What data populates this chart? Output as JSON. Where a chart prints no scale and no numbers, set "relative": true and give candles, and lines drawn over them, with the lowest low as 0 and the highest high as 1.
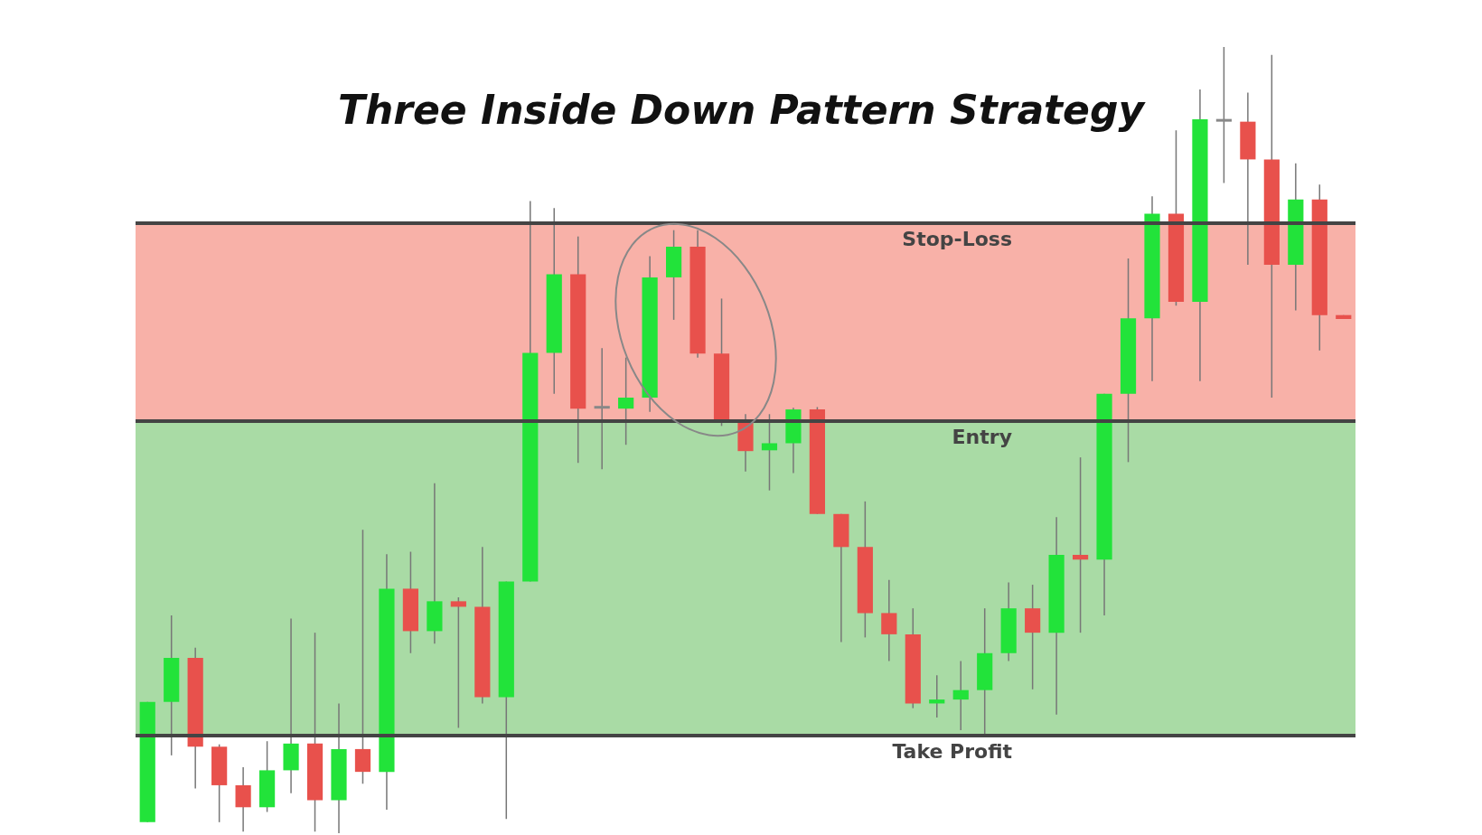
{
  "chart_data": {
    "type": "candlestick",
    "title": "Three Inside Down Pattern Strategy",
    "relative": true,
    "categories": [
      null,
      null,
      null,
      null,
      null,
      null,
      null,
      null,
      null,
      null,
      null,
      null,
      null,
      null,
      null,
      null,
      null,
      null,
      null,
      null,
      null,
      null,
      null,
      null,
      null,
      null,
      null,
      null,
      null,
      null,
      null,
      null,
      null,
      null,
      null,
      null,
      null,
      null,
      null,
      null,
      null,
      null,
      null,
      null,
      null,
      null,
      null,
      null,
      null,
      null,
      null
    ],
    "ohlc": [
      [
        0.014,
        0.167,
        0.014,
        0.167
      ],
      [
        0.167,
        0.277,
        0.099,
        0.223
      ],
      [
        0.223,
        0.236,
        0.057,
        0.11
      ],
      [
        0.11,
        0.113,
        0.014,
        0.061
      ],
      [
        0.061,
        0.084,
        0.002,
        0.033
      ],
      [
        0.033,
        0.117,
        0.027,
        0.08
      ],
      [
        0.08,
        0.273,
        0.051,
        0.114
      ],
      [
        0.114,
        0.255,
        0.002,
        0.042
      ],
      [
        0.042,
        0.165,
        0,
        0.107
      ],
      [
        0.107,
        0.386,
        0.063,
        0.078
      ],
      [
        0.078,
        0.355,
        0.03,
        0.311
      ],
      [
        0.311,
        0.358,
        0.229,
        0.257
      ],
      [
        0.257,
        0.445,
        0.241,
        0.295
      ],
      [
        0.295,
        0.3,
        0.134,
        0.288
      ],
      [
        0.288,
        0.364,
        0.165,
        0.173
      ],
      [
        0.173,
        0.32,
        0.018,
        0.32
      ],
      [
        0.32,
        0.804,
        0.32,
        0.611
      ],
      [
        0.611,
        0.795,
        0.559,
        0.711
      ],
      [
        0.711,
        0.759,
        0.471,
        0.54
      ],
      [
        0.54,
        0.617,
        0.463,
        0.541
      ],
      [
        0.54,
        0.605,
        0.494,
        0.554
      ],
      [
        0.554,
        0.734,
        0.536,
        0.707
      ],
      [
        0.707,
        0.767,
        0.653,
        0.746
      ],
      [
        0.746,
        0.767,
        0.605,
        0.61
      ],
      [
        0.61,
        0.68,
        0.518,
        0.525
      ],
      [
        0.525,
        0.533,
        0.46,
        0.486
      ],
      [
        0.487,
        0.533,
        0.436,
        0.496
      ],
      [
        0.496,
        0.541,
        0.458,
        0.539
      ],
      [
        0.539,
        0.542,
        0.406,
        0.406
      ],
      [
        0.406,
        0.406,
        0.243,
        0.364
      ],
      [
        0.364,
        0.422,
        0.249,
        0.28
      ],
      [
        0.28,
        0.322,
        0.219,
        0.253
      ],
      [
        0.253,
        0.286,
        0.159,
        0.165
      ],
      [
        0.165,
        0.201,
        0.147,
        0.17
      ],
      [
        0.17,
        0.219,
        0.131,
        0.182
      ],
      [
        0.182,
        0.286,
        0.123,
        0.229
      ],
      [
        0.229,
        0.319,
        0.219,
        0.286
      ],
      [
        0.286,
        0.316,
        0.183,
        0.255
      ],
      [
        0.255,
        0.402,
        0.151,
        0.354
      ],
      [
        0.354,
        0.478,
        0.255,
        0.348
      ],
      [
        0.348,
        0.559,
        0.277,
        0.559
      ],
      [
        0.559,
        0.731,
        0.472,
        0.655
      ],
      [
        0.655,
        0.81,
        0.575,
        0.788
      ],
      [
        0.788,
        0.894,
        0.671,
        0.676
      ],
      [
        0.676,
        0.946,
        0.575,
        0.908
      ],
      [
        0.906,
        1,
        0.827,
        0.905
      ],
      [
        0.905,
        0.942,
        0.723,
        0.857
      ],
      [
        0.857,
        0.99,
        0.554,
        0.723
      ],
      [
        0.723,
        0.852,
        0.665,
        0.806
      ],
      [
        0.806,
        0.825,
        0.614,
        0.659
      ],
      [
        0.659,
        0.659,
        0.654,
        0.654
      ]
    ],
    "colors": [
      "#22e33a",
      "#22e33a",
      "#e8514c",
      "#e8514c",
      "#e8514c",
      "#22e33a",
      "#22e33a",
      "#e8514c",
      "#22e33a",
      "#e8514c",
      "#22e33a",
      "#e8514c",
      "#22e33a",
      "#e8514c",
      "#e8514c",
      "#22e33a",
      "#22e33a",
      "#22e33a",
      "#e8514c",
      "#888888",
      "#22e33a",
      "#22e33a",
      "#22e33a",
      "#e8514c",
      "#e8514c",
      "#e8514c",
      "#22e33a",
      "#22e33a",
      "#e8514c",
      "#e8514c",
      "#e8514c",
      "#e8514c",
      "#e8514c",
      "#22e33a",
      "#22e33a",
      "#22e33a",
      "#22e33a",
      "#e8514c",
      "#22e33a",
      "#e8514c",
      "#22e33a",
      "#22e33a",
      "#22e33a",
      "#e8514c",
      "#22e33a",
      "#888888",
      "#e8514c",
      "#e8514c",
      "#22e33a",
      "#e8514c",
      "#e8514c"
    ],
    "bands": [
      {
        "axis": "y",
        "from": 0.524,
        "to": 0.776,
        "color": "#f8b1a8"
      },
      {
        "axis": "y",
        "from": 0.124,
        "to": 0.524,
        "color": "#a9dba5"
      }
    ],
    "ref_lines": [
      {
        "axis": "y",
        "value": 0.776,
        "label": "Stop-Loss",
        "color": "#444444"
      },
      {
        "axis": "y",
        "value": 0.524,
        "label": "Entry",
        "color": "#444444"
      },
      {
        "axis": "y",
        "value": 0.124,
        "label": "Take Profit",
        "color": "#444444"
      }
    ],
    "legend": false
  }
}
